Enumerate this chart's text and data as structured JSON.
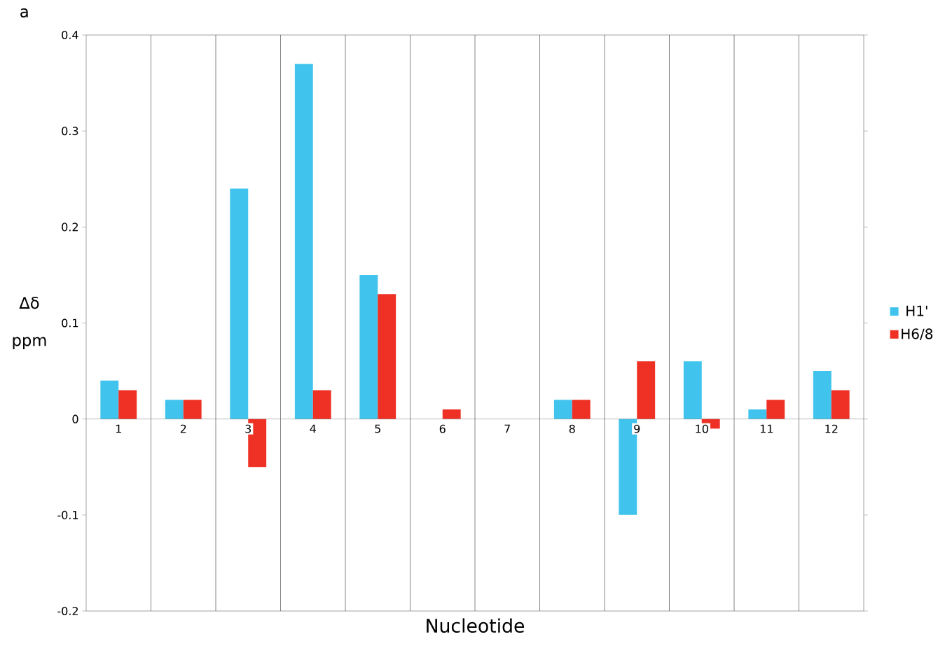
{
  "chart_data": {
    "type": "bar",
    "title": "a",
    "xlabel": "Nucleotide",
    "ylabel": "Δδ ppm",
    "categories": [
      "1",
      "2",
      "3",
      "4",
      "5",
      "6",
      "7",
      "8",
      "9",
      "10",
      "11",
      "12"
    ],
    "series": [
      {
        "name": "H1'",
        "color": "#40c4ee",
        "values": [
          0.04,
          0.02,
          0.24,
          0.37,
          0.15,
          null,
          null,
          0.02,
          -0.1,
          0.06,
          0.01,
          0.05
        ]
      },
      {
        "name": "H6/8",
        "color": "#ee3124",
        "values": [
          0.03,
          0.02,
          -0.05,
          0.03,
          0.13,
          0.01,
          null,
          0.02,
          0.06,
          -0.01,
          0.02,
          0.03
        ]
      }
    ],
    "ylim": [
      -0.2,
      0.4
    ],
    "yticks": [
      -0.2,
      -0.1,
      0,
      0.1,
      0.2,
      0.3,
      0.4
    ],
    "grid": "x",
    "legend": "right"
  }
}
